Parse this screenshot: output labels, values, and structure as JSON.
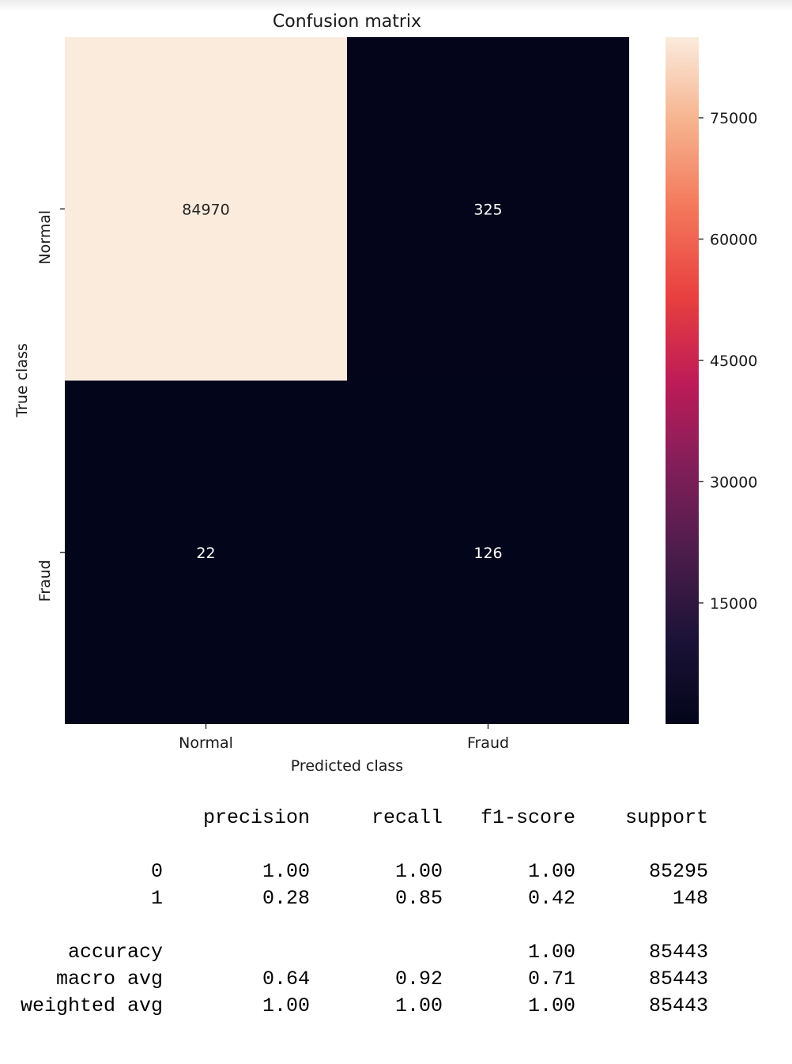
{
  "chart_data": {
    "type": "heatmap",
    "title": "Confusion matrix",
    "xlabel": "Predicted class",
    "ylabel": "True class",
    "x_categories": [
      "Normal",
      "Fraud"
    ],
    "y_categories": [
      "Normal",
      "Fraud"
    ],
    "values": [
      [
        84970,
        325
      ],
      [
        22,
        126
      ]
    ],
    "colormap": "rocket",
    "vmin": 22,
    "vmax": 84970,
    "colorbar_ticks": [
      15000,
      30000,
      45000,
      60000,
      75000
    ],
    "colors": {
      "low": "#03051a",
      "high": "#faebdd"
    }
  },
  "report": {
    "headers": [
      "precision",
      "recall",
      "f1-score",
      "support"
    ],
    "rows": [
      {
        "label": "0",
        "precision": "1.00",
        "recall": "1.00",
        "f1": "1.00",
        "support": "85295"
      },
      {
        "label": "1",
        "precision": "0.28",
        "recall": "0.85",
        "f1": "0.42",
        "support": "148"
      },
      {
        "label": "accuracy",
        "precision": "",
        "recall": "",
        "f1": "1.00",
        "support": "85443"
      },
      {
        "label": "macro avg",
        "precision": "0.64",
        "recall": "0.92",
        "f1": "0.71",
        "support": "85443"
      },
      {
        "label": "weighted avg",
        "precision": "1.00",
        "recall": "1.00",
        "f1": "1.00",
        "support": "85443"
      }
    ]
  }
}
